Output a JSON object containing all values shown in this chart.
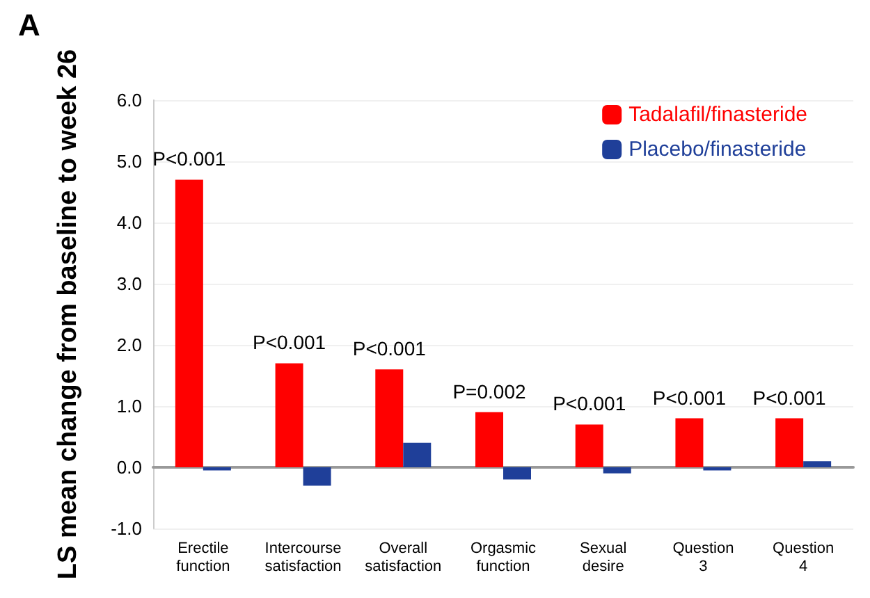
{
  "chart_data": {
    "type": "bar",
    "title": "A",
    "ylabel": "LS mean change from baseline to week 26",
    "categories": [
      "Erectile function",
      "Intercourse satisfaction",
      "Overall satisfaction",
      "Orgasmic function",
      "Sexual desire",
      "Question 3",
      "Question 4"
    ],
    "series": [
      {
        "name": "Tadalafil/finasteride",
        "color": "#ff0000",
        "values": [
          4.7,
          1.7,
          1.6,
          0.9,
          0.7,
          0.8,
          0.8
        ]
      },
      {
        "name": "Placebo/finasteride",
        "color": "#1f3f99",
        "values": [
          -0.05,
          -0.3,
          0.4,
          -0.2,
          -0.1,
          -0.05,
          0.1
        ]
      }
    ],
    "ylim": [
      -1,
      6
    ],
    "yticks": [
      {
        "value": -1,
        "label": "-1.0"
      },
      {
        "value": 0,
        "label": "0.0"
      },
      {
        "value": 1,
        "label": "1.0"
      },
      {
        "value": 2,
        "label": "2.0"
      },
      {
        "value": 3,
        "label": "3.0"
      },
      {
        "value": 4,
        "label": "4.0"
      },
      {
        "value": 5,
        "label": "5.0"
      },
      {
        "value": 6,
        "label": "6.0"
      }
    ],
    "annotations": [
      {
        "text": "P<0.001",
        "x": "Erectile function",
        "y": 4.7
      },
      {
        "text": "P<0.001",
        "x": "Intercourse satisfaction",
        "y": 1.7
      },
      {
        "text": "P<0.001",
        "x": "Overall satisfaction",
        "y": 1.6
      },
      {
        "text": "P=0.002",
        "x": "Orgasmic function",
        "y": 0.9
      },
      {
        "text": "P<0.001",
        "x": "Sexual desire",
        "y": 0.7
      },
      {
        "text": "P<0.001",
        "x": "Question 3",
        "y": 0.8
      },
      {
        "text": "P<0.001",
        "x": "Question 4",
        "y": 0.8
      }
    ],
    "grid": "y",
    "legend": "top right"
  }
}
